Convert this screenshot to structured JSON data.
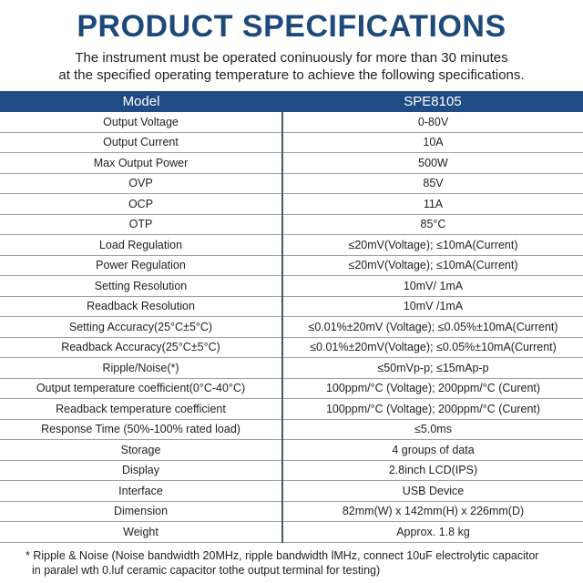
{
  "title": "PRODUCT SPECIFICATIONS",
  "subtitle": [
    "The instrument must be operated coninuously for more than 30 minutes",
    "at the specified operating temperature to achieve the following specifications."
  ],
  "table": {
    "headers": [
      "Model",
      "SPE8105"
    ],
    "rows": [
      [
        "Output Voltage",
        "0-80V"
      ],
      [
        "Output Current",
        "10A"
      ],
      [
        "Max Output Power",
        "500W"
      ],
      [
        "OVP",
        "85V"
      ],
      [
        "OCP",
        "11A"
      ],
      [
        "OTP",
        "85°C"
      ],
      [
        "Load Regulation",
        "≤20mV(Voltage); ≤10mA(Current)"
      ],
      [
        "Power Regulation",
        "≤20mV(Voltage); ≤10mA(Current)"
      ],
      [
        "Setting Resolution",
        "10mV/ 1mA"
      ],
      [
        "Readback Resolution",
        "10mV /1mA"
      ],
      [
        "Setting Accuracy(25°C±5°C)",
        "≤0.01%±20mV (Voltage); ≤0.05%±10mA(Current)"
      ],
      [
        "Readback Accuracy(25°C±5°C)",
        "≤0.01%±20mV(Voltage); ≤0.05%±10mA(Current)"
      ],
      [
        "Ripple/Noise(*)",
        "≤50mVp-p; ≤15mAp-p"
      ],
      [
        "Output temperature coefficient(0°C-40°C)",
        "100ppm/°C (Voltage); 200ppm/°C (Curent)"
      ],
      [
        "Readback temperature coefficient",
        "100ppm/°C (Voltage); 200ppm/°C (Curent)"
      ],
      [
        "Response Time (50%-100% rated load)",
        "≤5.0ms"
      ],
      [
        "Storage",
        "4 groups of data"
      ],
      [
        "Display",
        "2.8inch LCD(IPS)"
      ],
      [
        "Interface",
        "USB Device"
      ],
      [
        "Dimension",
        "82mm(W) x 142mm(H) x 226mm(D)"
      ],
      [
        "Weight",
        "Approx. 1.8 kg"
      ]
    ]
  },
  "footnote": [
    "* Ripple & Noise (Noise bandwidth 20MHz, ripple bandwidth lMHz, connect 10uF electrolytic capacitor",
    "in paralel wth 0.luf ceramic capacitor tothe output terminal for testing)"
  ]
}
